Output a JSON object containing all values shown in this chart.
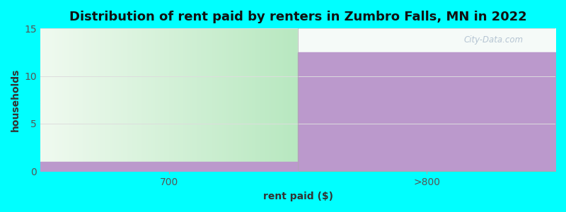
{
  "title": "Distribution of rent paid by renters in Zumbro Falls, MN in 2022",
  "categories": [
    "700",
    ">800"
  ],
  "values": [
    1,
    12.5
  ],
  "green_bar_color_bottom": "#b8e8c0",
  "green_bar_color_top": "#f0faf0",
  "purple_bar_color": "#bb99cc",
  "purple_strip_color": "#bb99cc",
  "xlabel": "rent paid ($)",
  "ylabel": "households",
  "ylim": [
    0,
    15
  ],
  "yticks": [
    0,
    5,
    10,
    15
  ],
  "background_color": "#00ffff",
  "plot_bg_top": "#f5faf5",
  "plot_bg_bottom": "#e0f5e0",
  "title_fontsize": 13,
  "axis_label_fontsize": 10,
  "tick_fontsize": 10,
  "watermark_text": "City-Data.com"
}
